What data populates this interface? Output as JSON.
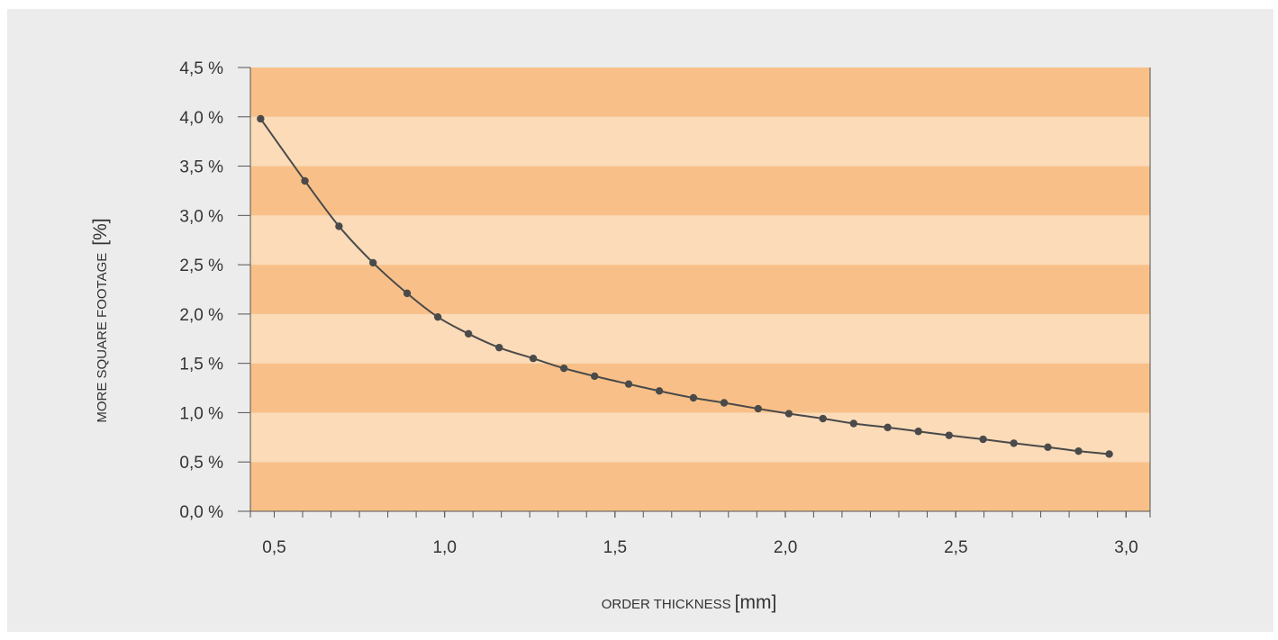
{
  "chart_data": {
    "type": "line",
    "title": "",
    "xlabel": "ORDER THICKNESS",
    "xlabel_unit": "[mm]",
    "ylabel": "MORE SQUARE FOOTAGE",
    "ylabel_unit": "[%]",
    "xlim": [
      0.43,
      3.07
    ],
    "ylim": [
      0,
      4.5
    ],
    "xticks": [
      0.5,
      1.0,
      1.5,
      2.0,
      2.5,
      3.0
    ],
    "xtick_labels": [
      "0,5",
      "1,0",
      "1,5",
      "2,0",
      "2,5",
      "3,0"
    ],
    "yticks": [
      0,
      0.5,
      1.0,
      1.5,
      2.0,
      2.5,
      3.0,
      3.5,
      4.0,
      4.5
    ],
    "ytick_labels": [
      "0,0 %",
      "0,5 %",
      "1,0 %",
      "1,5 %",
      "2,0 %",
      "2,5 %",
      "3,0 %",
      "3,5 %",
      "4,0 %",
      "4,5 %"
    ],
    "x_minor_step": 0.0833,
    "grid": "alternating horizontal bands",
    "band_colors": [
      "#f8c088",
      "#fbdbb8"
    ],
    "series": [
      {
        "color": "#4a4a4a",
        "x": [
          0.46,
          0.59,
          0.69,
          0.79,
          0.89,
          0.98,
          1.07,
          1.16,
          1.26,
          1.35,
          1.44,
          1.54,
          1.63,
          1.73,
          1.82,
          1.92,
          2.01,
          2.11,
          2.2,
          2.3,
          2.39,
          2.48,
          2.58,
          2.67,
          2.77,
          2.86,
          2.95
        ],
        "y": [
          3.98,
          3.35,
          2.89,
          2.52,
          2.21,
          1.97,
          1.8,
          1.66,
          1.55,
          1.45,
          1.37,
          1.29,
          1.22,
          1.15,
          1.1,
          1.04,
          0.99,
          0.94,
          0.89,
          0.85,
          0.81,
          0.77,
          0.73,
          0.69,
          0.65,
          0.61,
          0.58
        ]
      }
    ]
  }
}
